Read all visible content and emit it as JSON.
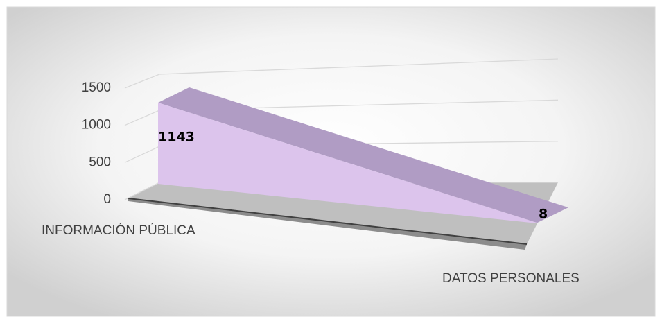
{
  "chart_data": {
    "type": "area3d",
    "categories": [
      "INFORMACIÓN PÚBLICA",
      "DATOS PERSONALES"
    ],
    "values": [
      1143,
      8
    ],
    "color": "#dcc4ec",
    "top_color": "#b09cc4",
    "floor_color": "#bfbfbf",
    "ylim": [
      0,
      1500
    ],
    "yticks": [
      0,
      500,
      1000,
      1500
    ],
    "grid": true
  }
}
